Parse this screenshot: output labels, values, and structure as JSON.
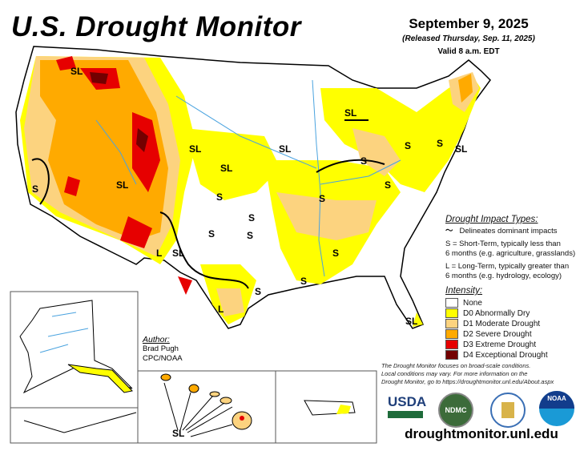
{
  "header": {
    "title": "U.S. Drought Monitor",
    "date": "September 9, 2025",
    "released": "(Released Thursday, Sep. 11, 2025)",
    "valid": "Valid 8 a.m. EDT"
  },
  "impact_types": {
    "heading": "Drought Impact Types:",
    "delineates": "Delineates dominant impacts",
    "short_term_line1": "S = Short-Term, typically less than",
    "short_term_line2": "6 months (e.g. agriculture, grasslands)",
    "long_term_line1": "L = Long-Term, typically greater than",
    "long_term_line2": "6 months (e.g. hydrology, ecology)"
  },
  "intensity": {
    "heading": "Intensity:",
    "items": [
      {
        "label": "None",
        "color": "#ffffff"
      },
      {
        "label": "D0 Abnormally Dry",
        "color": "#ffff00"
      },
      {
        "label": "D1 Moderate Drought",
        "color": "#fcd37f"
      },
      {
        "label": "D2 Severe Drought",
        "color": "#ffaa00"
      },
      {
        "label": "D3 Extreme Drought",
        "color": "#e60000"
      },
      {
        "label": "D4 Exceptional Drought",
        "color": "#730000"
      }
    ]
  },
  "author": {
    "heading": "Author:",
    "name": "Brad Pugh",
    "org": "CPC/NOAA"
  },
  "disclaimer": {
    "line1": "The Drought Monitor focuses on broad-scale conditions.",
    "line2": "Local conditions may vary. For more information on the",
    "line3": "Drought Monitor, go to https://droughtmonitor.unl.edu/About.aspx"
  },
  "logos": {
    "usda": "USDA",
    "ndmc": "NDMC",
    "noaa": "NOAA"
  },
  "url": "droughtmonitor.unl.edu",
  "map_labels": [
    "SL",
    "SL",
    "SL",
    "S",
    "SL",
    "SL",
    "SL",
    "S",
    "S",
    "SL",
    "S",
    "S",
    "S",
    "S",
    "S",
    "S",
    "S",
    "S",
    "L",
    "SL",
    "L",
    "S",
    "S",
    "SL",
    "SL"
  ]
}
